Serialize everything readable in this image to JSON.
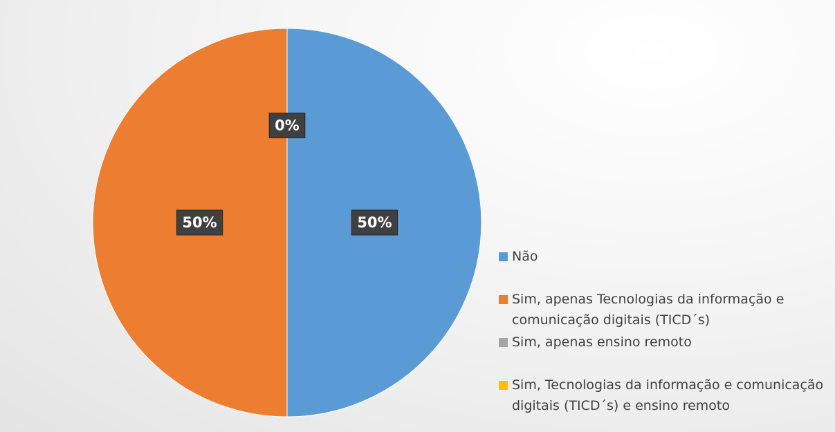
{
  "chart_data": {
    "type": "pie",
    "categories": [
      "Não",
      "Sim, apenas Tecnologias da informação e comunicação digitais (TICD´s)",
      "Sim, apenas ensino remoto",
      "Sim, Tecnologias da informação e comunicação digitais (TICD´s) e ensino remoto"
    ],
    "values": [
      50,
      50,
      0,
      0
    ],
    "value_labels": [
      "50%",
      "50%",
      "0%",
      null
    ],
    "colors": [
      "#5b9bd5",
      "#ed7d31",
      "#a5a5a5",
      "#ffc000"
    ],
    "legend": "right"
  }
}
